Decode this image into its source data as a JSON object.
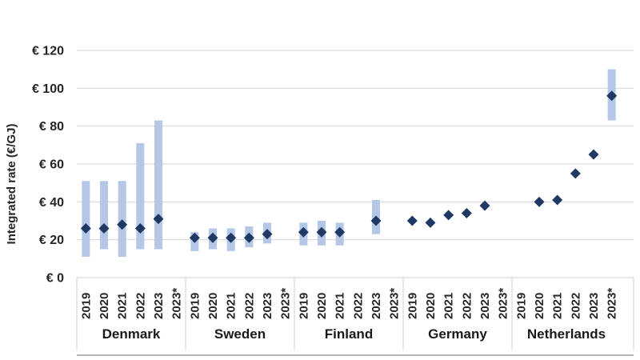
{
  "chart_data": {
    "type": "scatter",
    "ylabel": "Integrated rate (€/GJ)",
    "ylim": [
      0,
      130
    ],
    "grid": true,
    "legend": null,
    "y_ticks": [
      {
        "value": 0,
        "label": "€ 0"
      },
      {
        "value": 20,
        "label": "€ 20"
      },
      {
        "value": 40,
        "label": "€ 40"
      },
      {
        "value": 60,
        "label": "€ 60"
      },
      {
        "value": 80,
        "label": "€ 80"
      },
      {
        "value": 100,
        "label": "€ 100"
      },
      {
        "value": 120,
        "label": "€ 120"
      }
    ],
    "years": [
      "2019",
      "2020",
      "2021",
      "2022",
      "2023",
      "2023*"
    ],
    "groups": [
      {
        "country": "Denmark",
        "points": [
          {
            "year": "2019",
            "value": 26,
            "low": 11,
            "high": 51
          },
          {
            "year": "2020",
            "value": 26,
            "low": 15,
            "high": 51
          },
          {
            "year": "2021",
            "value": 28,
            "low": 11,
            "high": 51
          },
          {
            "year": "2022",
            "value": 26,
            "low": 15,
            "high": 71
          },
          {
            "year": "2023",
            "value": 31,
            "low": 15,
            "high": 83
          },
          {
            "year": "2023*",
            "value": null,
            "low": null,
            "high": null
          }
        ]
      },
      {
        "country": "Sweden",
        "points": [
          {
            "year": "2019",
            "value": 21,
            "low": 14,
            "high": 24
          },
          {
            "year": "2020",
            "value": 21,
            "low": 15,
            "high": 26
          },
          {
            "year": "2021",
            "value": 21,
            "low": 14,
            "high": 26
          },
          {
            "year": "2022",
            "value": 21,
            "low": 16,
            "high": 27
          },
          {
            "year": "2023",
            "value": 23,
            "low": 18,
            "high": 29
          },
          {
            "year": "2023*",
            "value": null,
            "low": null,
            "high": null
          }
        ]
      },
      {
        "country": "Finland",
        "points": [
          {
            "year": "2019",
            "value": 24,
            "low": 17,
            "high": 29
          },
          {
            "year": "2020",
            "value": 24,
            "low": 17,
            "high": 30
          },
          {
            "year": "2021",
            "value": 24,
            "low": 17,
            "high": 29
          },
          {
            "year": "2022",
            "value": null,
            "low": null,
            "high": null
          },
          {
            "year": "2023",
            "value": 30,
            "low": 23,
            "high": 41
          },
          {
            "year": "2023*",
            "value": null,
            "low": null,
            "high": null
          }
        ]
      },
      {
        "country": "Germany",
        "points": [
          {
            "year": "2019",
            "value": 30,
            "low": null,
            "high": null
          },
          {
            "year": "2020",
            "value": 29,
            "low": null,
            "high": null
          },
          {
            "year": "2021",
            "value": 33,
            "low": null,
            "high": null
          },
          {
            "year": "2022",
            "value": 34,
            "low": null,
            "high": null
          },
          {
            "year": "2023",
            "value": 38,
            "low": null,
            "high": null
          },
          {
            "year": "2023*",
            "value": null,
            "low": null,
            "high": null
          }
        ]
      },
      {
        "country": "Netherlands",
        "points": [
          {
            "year": "2019",
            "value": null,
            "low": null,
            "high": null
          },
          {
            "year": "2020",
            "value": 40,
            "low": null,
            "high": null
          },
          {
            "year": "2021",
            "value": 41,
            "low": null,
            "high": null
          },
          {
            "year": "2022",
            "value": 55,
            "low": null,
            "high": null
          },
          {
            "year": "2023",
            "value": 65,
            "low": null,
            "high": null
          },
          {
            "year": "2023*",
            "value": 96,
            "low": 83,
            "high": 110
          }
        ]
      }
    ],
    "colors": {
      "bar": "#b4c7e7",
      "diamond": "#1f3864",
      "gridline": "#d9d9d9",
      "table_border": "#b3b3b3",
      "axis_text": "#262626",
      "country_text": "#1a1a1a"
    }
  }
}
